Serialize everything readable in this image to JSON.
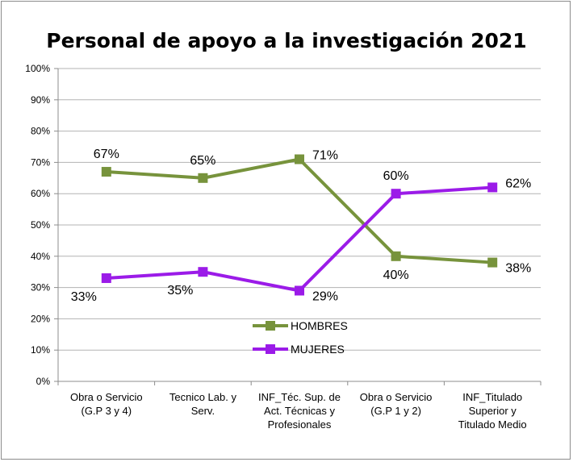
{
  "chart_data": {
    "type": "line",
    "title": "Personal de apoyo a la investigación 2021",
    "categories": [
      [
        "Obra o Servicio",
        "(G.P 3 y 4)"
      ],
      [
        "Tecnico Lab. y",
        "Serv."
      ],
      [
        "INF_Téc. Sup. de",
        "Act. Técnicas y",
        "Profesionales"
      ],
      [
        "Obra o Servicio",
        "(G.P 1 y 2)"
      ],
      [
        "INF_Titulado",
        "Superior y",
        "Titulado Medio"
      ]
    ],
    "series": [
      {
        "name": "HOMBRES",
        "values": [
          67,
          65,
          71,
          40,
          38
        ],
        "labels": [
          "67%",
          "65%",
          "71%",
          "40%",
          "38%"
        ],
        "color": "#77933C"
      },
      {
        "name": "MUJERES",
        "values": [
          33,
          35,
          29,
          60,
          62
        ],
        "labels": [
          "33%",
          "35%",
          "29%",
          "60%",
          "62%"
        ],
        "color": "#9B1BE8"
      }
    ],
    "ylim": [
      0,
      100
    ],
    "yticks": [
      "0%",
      "10%",
      "20%",
      "30%",
      "40%",
      "50%",
      "60%",
      "70%",
      "80%",
      "90%",
      "100%"
    ],
    "grid": true,
    "legend": "center-bottom"
  }
}
